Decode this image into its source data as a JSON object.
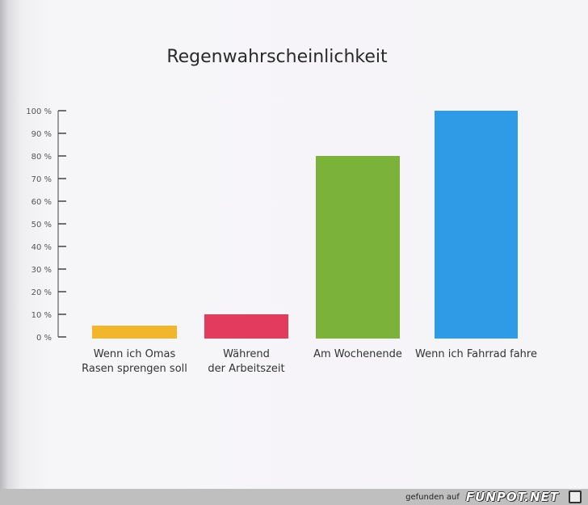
{
  "chart_data": {
    "type": "bar",
    "title": "Regenwahrscheinlichkeit",
    "categories": [
      "Wenn ich Omas\nRasen sprengen soll",
      "Während\nder Arbeitszeit",
      "Am Wochenende",
      "Wenn ich Fahrrad fahre"
    ],
    "values": [
      5,
      10,
      80,
      100
    ],
    "ylim": [
      0,
      100
    ],
    "ytick_labels": [
      "0 %",
      "10 %",
      "20 %",
      "30 %",
      "40 %",
      "50 %",
      "60 %",
      "70 %",
      "80 %",
      "90 %",
      "100 %"
    ],
    "colors": [
      "#f1b62c",
      "#e33b5e",
      "#7bb33a",
      "#2f9be6"
    ],
    "grid": false,
    "legend": "none"
  },
  "footer": {
    "found_label": "gefunden auf",
    "brand": "FUNPOT.NET"
  }
}
